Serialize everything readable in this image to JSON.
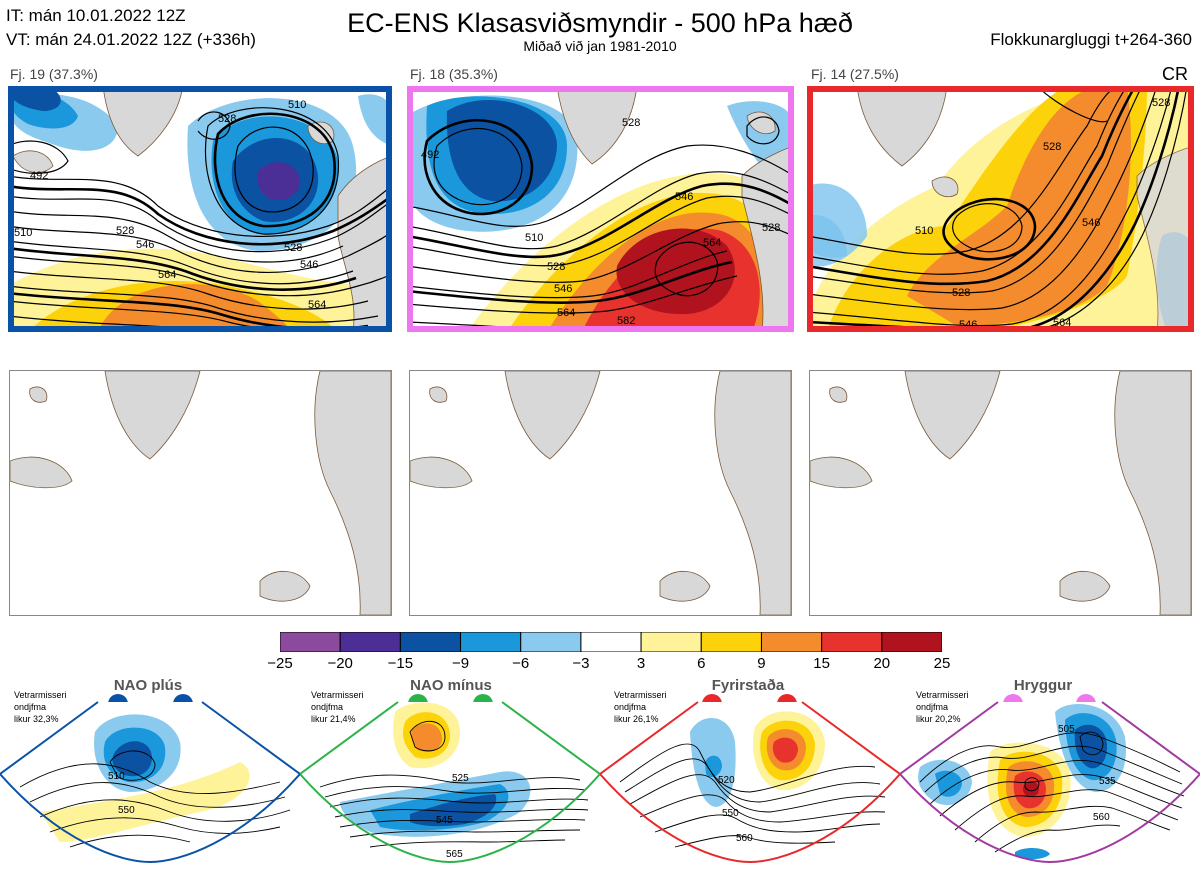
{
  "header": {
    "it_line": "IT: mán 10.01.2022 12Z",
    "vt_line": "VT: mán 24.01.2022 12Z  (+336h)",
    "title": "EC-ENS Klasasviðsmyndir - 500 hPa hæð",
    "subtitle": "Miðað við jan 1981-2010",
    "window": "Flokkunargluggi t+264-360"
  },
  "clusters": [
    {
      "label": "Fj. 19 (37.3%)",
      "border_color": "#0a52a8",
      "contour_labels": [
        "510",
        "528",
        "546",
        "564",
        "510",
        "528",
        "492",
        "564",
        "546",
        "528"
      ]
    },
    {
      "label": "Fj. 18 (35.3%)",
      "border_color": "#ee76ee",
      "contour_labels": [
        "492",
        "510",
        "528",
        "546",
        "564",
        "564",
        "528",
        "546",
        "582",
        "528"
      ]
    },
    {
      "label": "Fj. 14 (27.5%)",
      "border_color": "#e8282a",
      "tag": "CR",
      "contour_labels": [
        "510",
        "528",
        "546",
        "564",
        "528",
        "546",
        "528"
      ]
    }
  ],
  "colorbar": {
    "ticks": [
      "−25",
      "−20",
      "−15",
      "−9",
      "−6",
      "−3",
      "3",
      "6",
      "9",
      "15",
      "20",
      "25"
    ],
    "colors": [
      "#8b4a9c",
      "#4b2f96",
      "#0b52a2",
      "#1b97dc",
      "#8bcaef",
      "#ffffff",
      "#fff39a",
      "#fcd20a",
      "#f48c2e",
      "#e8322e",
      "#b0121e"
    ]
  },
  "regimes": [
    {
      "name": "NAO plús",
      "note": [
        "Vetrarmisseri",
        "ondjfma",
        "likur 32,3%"
      ],
      "color": "#0a52a8",
      "labels": [
        "510",
        "550"
      ]
    },
    {
      "name": "NAO mínus",
      "note": [
        "Vetrarmisseri",
        "ondjfma",
        "likur 21,4%"
      ],
      "color": "#2bb34a",
      "labels": [
        "525",
        "545",
        "565"
      ]
    },
    {
      "name": "Fyrirstaða",
      "note": [
        "Vetrarmisseri",
        "ondjfma",
        "likur 26,1%"
      ],
      "color": "#e8282a",
      "labels": [
        "520",
        "550",
        "560"
      ]
    },
    {
      "name": "Hryggur",
      "note": [
        "Vetrarmisseri",
        "ondjfma",
        "likur 20,2%"
      ],
      "color": "#ee76ee",
      "labels": [
        "505",
        "535",
        "560"
      ]
    }
  ]
}
